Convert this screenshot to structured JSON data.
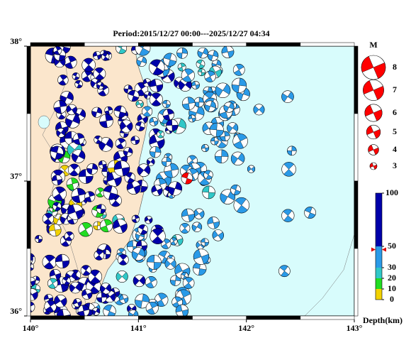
{
  "title": "Period:2015/12/27 00:00---2025/12/27 04:34",
  "map": {
    "lon_ticks": [
      {
        "value": 140,
        "label": "140°"
      },
      {
        "value": 141,
        "label": "141°"
      },
      {
        "value": 142,
        "label": "142°"
      },
      {
        "value": 143,
        "label": "143°"
      }
    ],
    "lat_ticks": [
      {
        "value": 36,
        "label": "36°"
      },
      {
        "value": 37,
        "label": "37°"
      },
      {
        "value": 38,
        "label": "38°"
      }
    ]
  },
  "magnitude_legend": {
    "title": "M",
    "values": [
      8,
      7,
      6,
      5,
      4,
      3
    ]
  },
  "depth_scale": {
    "label": "Depth(km)",
    "ticks": [
      0,
      10,
      20,
      30,
      50,
      100
    ],
    "colors": [
      "#f2d200",
      "#22dd22",
      "#30c8c8",
      "#2a9ae8",
      "#0000aa"
    ],
    "marker": 47
  }
}
